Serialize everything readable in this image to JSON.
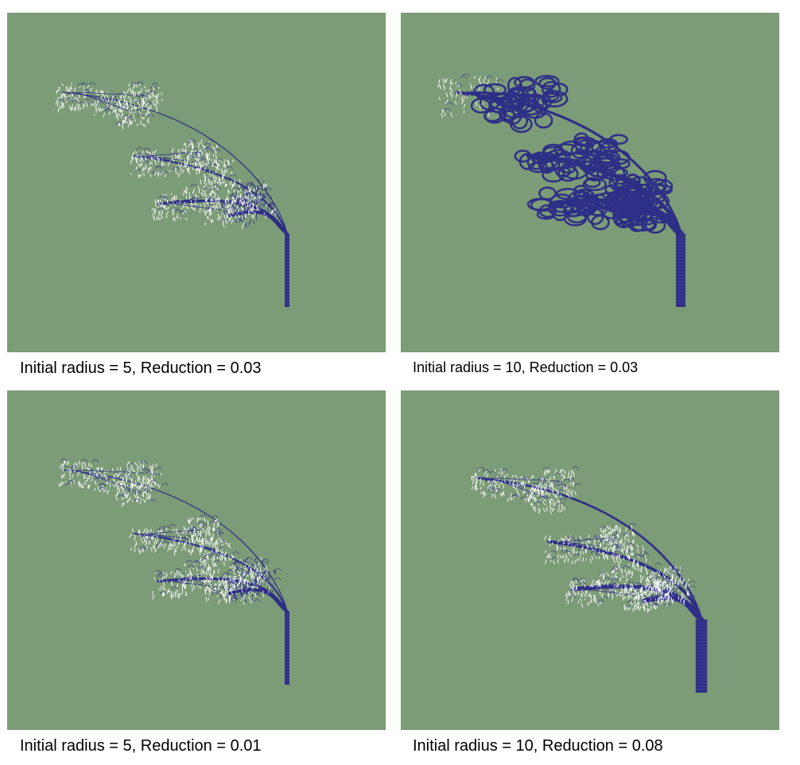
{
  "colors": {
    "background": "#7c9b77",
    "branch": "#2e2f86",
    "leaf": "#ffffff",
    "page": "#ffffff"
  },
  "panels": [
    {
      "caption": "Initial radius = 5, Reduction = 0.03",
      "initial_radius": 5,
      "reduction": 0.03
    },
    {
      "caption": "Initial radius = 10, Reduction = 0.03",
      "initial_radius": 10,
      "reduction": 0.03
    },
    {
      "caption": "Initial radius = 5, Reduction = 0.01",
      "initial_radius": 5,
      "reduction": 0.01
    },
    {
      "caption": "Initial radius = 10, Reduction = 0.08",
      "initial_radius": 10,
      "reduction": 0.08
    }
  ]
}
